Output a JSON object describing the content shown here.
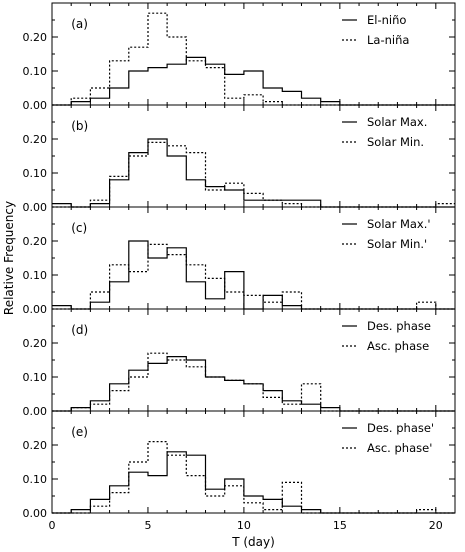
{
  "chart_data": {
    "type": "step",
    "xlabel": "T (day)",
    "ylabel": "Relative Frequency",
    "xlim": [
      0,
      21
    ],
    "ylim": [
      0,
      0.3
    ],
    "x_ticks": [
      0,
      5,
      10,
      15,
      20
    ],
    "x_tick_labels": [
      "0",
      "5",
      "10",
      "15",
      "20"
    ],
    "y_ticks": [
      0,
      0.1,
      0.2
    ],
    "y_tick_labels": [
      "0.00",
      "0.10",
      "0.20"
    ],
    "bins": [
      0,
      1,
      2,
      3,
      4,
      5,
      6,
      7,
      8,
      9,
      10,
      11,
      12,
      13,
      14,
      15,
      16,
      17,
      18,
      19,
      20
    ],
    "legend_position": "top-right",
    "panels": [
      {
        "label": "(a)",
        "series": [
          {
            "name": "El-niño",
            "style": "solid",
            "values": [
              0,
              0.01,
              0.02,
              0.05,
              0.1,
              0.11,
              0.12,
              0.14,
              0.12,
              0.09,
              0.1,
              0.05,
              0.04,
              0.02,
              0.01,
              0,
              0,
              0,
              0,
              0,
              0
            ]
          },
          {
            "name": "La-niña",
            "style": "dotted",
            "values": [
              0,
              0.02,
              0.05,
              0.13,
              0.17,
              0.27,
              0.2,
              0.13,
              0.11,
              0.02,
              0.03,
              0.01,
              0,
              0,
              0,
              0,
              0,
              0,
              0,
              0,
              0
            ]
          }
        ]
      },
      {
        "label": "(b)",
        "series": [
          {
            "name": "Solar Max.",
            "style": "solid",
            "values": [
              0.01,
              0,
              0.01,
              0.08,
              0.16,
              0.2,
              0.15,
              0.08,
              0.06,
              0.05,
              0.02,
              0.02,
              0.02,
              0.02,
              0,
              0,
              0,
              0,
              0,
              0,
              0
            ]
          },
          {
            "name": "Solar Min.",
            "style": "dotted",
            "values": [
              0,
              0,
              0.02,
              0.09,
              0.15,
              0.19,
              0.18,
              0.16,
              0.05,
              0.07,
              0.04,
              0.02,
              0.01,
              0,
              0,
              0,
              0,
              0,
              0,
              0,
              0.01
            ]
          }
        ]
      },
      {
        "label": "(c)",
        "series": [
          {
            "name": "Solar Max.'",
            "style": "solid",
            "values": [
              0.01,
              0,
              0.02,
              0.08,
              0.2,
              0.15,
              0.18,
              0.08,
              0.03,
              0.11,
              0,
              0.04,
              0.01,
              0,
              0,
              0,
              0,
              0,
              0,
              0,
              0
            ]
          },
          {
            "name": "Solar Min.'",
            "style": "dotted",
            "values": [
              0,
              0,
              0.05,
              0.13,
              0.11,
              0.19,
              0.16,
              0.13,
              0.09,
              0.05,
              0.04,
              0.02,
              0.05,
              0,
              0,
              0,
              0,
              0,
              0,
              0.02,
              0
            ]
          }
        ]
      },
      {
        "label": "(d)",
        "series": [
          {
            "name": "Des. phase",
            "style": "solid",
            "values": [
              0,
              0.01,
              0.03,
              0.08,
              0.12,
              0.14,
              0.16,
              0.15,
              0.1,
              0.09,
              0.08,
              0.06,
              0.03,
              0.02,
              0.01,
              0,
              0,
              0,
              0,
              0,
              0
            ]
          },
          {
            "name": "Asc. phase",
            "style": "dotted",
            "values": [
              0,
              0.01,
              0.02,
              0.06,
              0.1,
              0.17,
              0.15,
              0.13,
              0.1,
              0.09,
              0.08,
              0.04,
              0.02,
              0.08,
              0,
              0,
              0,
              0,
              0,
              0,
              0
            ]
          }
        ]
      },
      {
        "label": "(e)",
        "series": [
          {
            "name": "Des. phase'",
            "style": "solid",
            "values": [
              0,
              0.01,
              0.04,
              0.08,
              0.12,
              0.11,
              0.18,
              0.17,
              0.07,
              0.1,
              0.05,
              0.04,
              0.02,
              0.01,
              0,
              0,
              0,
              0,
              0,
              0,
              0
            ]
          },
          {
            "name": "Asc. phase'",
            "style": "dotted",
            "values": [
              0,
              0,
              0.02,
              0.06,
              0.15,
              0.21,
              0.17,
              0.11,
              0.05,
              0.08,
              0.03,
              0.01,
              0.09,
              0,
              0,
              0,
              0,
              0,
              0,
              0.01,
              0
            ]
          }
        ]
      }
    ]
  }
}
